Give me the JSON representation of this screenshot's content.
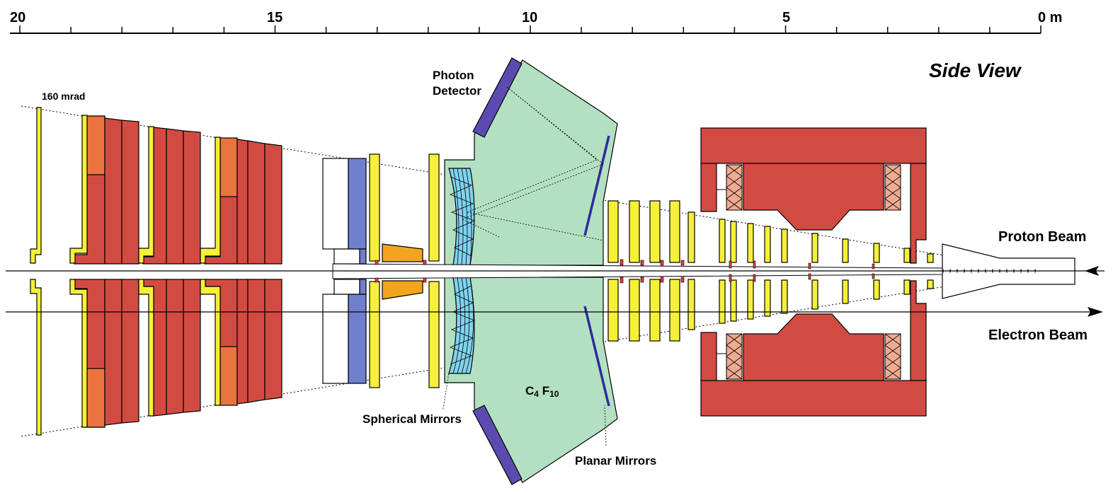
{
  "title": "Side View",
  "scale": {
    "labels": [
      "20",
      "15",
      "10",
      "5",
      "0 m"
    ],
    "range_m": [
      20,
      0
    ],
    "minor_tick_m": 1
  },
  "labels": {
    "angle": "160 mrad",
    "photon_detector_line1": "Photon",
    "photon_detector_line2": "Detector",
    "spherical_mirrors": "Spherical Mirrors",
    "planar_mirrors": "Planar Mirrors",
    "gas_main": "C",
    "gas_sub1": "4",
    "gas_mid": " F",
    "gas_sub2": "10",
    "proton_beam": "Proton Beam",
    "electron_beam": "Electron Beam"
  },
  "colors": {
    "iron": "#d24b43",
    "iron_light": "#ea7440",
    "scintillator": "#f7f03a",
    "cherenkov_gas": "#b3e0c1",
    "photon_detector": "#5b4bb0",
    "mirror": "#2c2c9c",
    "spherical_mirror": "#7fd3ef",
    "calorimeter": "#6f7fcc",
    "absorber": "#f3a41f",
    "coil": "#efaa90"
  }
}
